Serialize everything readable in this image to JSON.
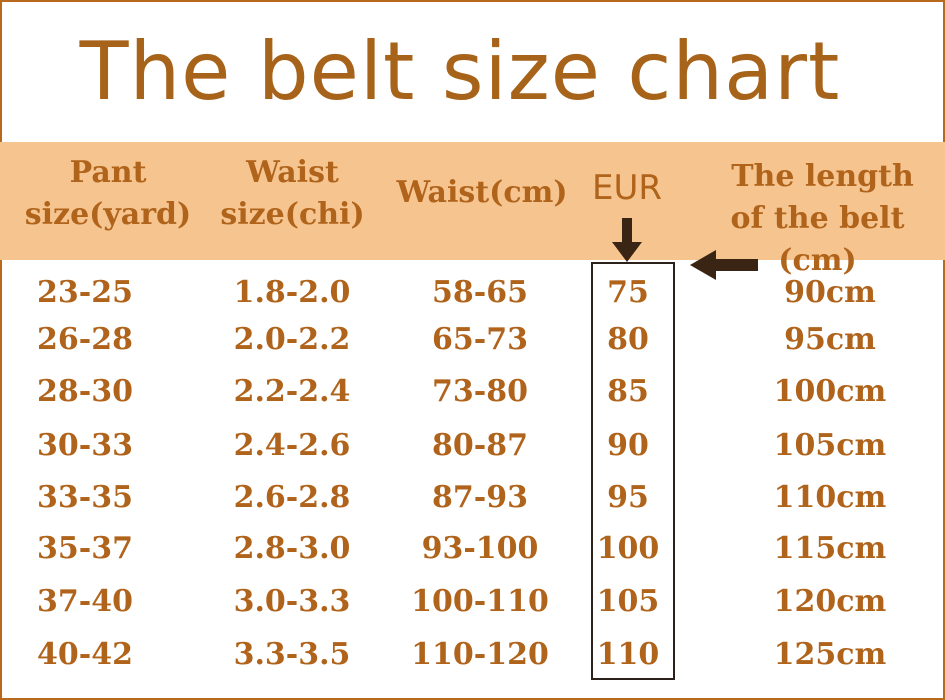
{
  "title": "The belt size chart",
  "header": {
    "pant_size": [
      "Pant",
      "size(yard)"
    ],
    "waist_chi": [
      "Waist",
      "size(chi)"
    ],
    "waist_cm": "Waist(cm)",
    "eur": "EUR",
    "belt_length": [
      "The length",
      "of the belt (cm)"
    ]
  },
  "rows": [
    {
      "pant": "23-25",
      "chi": "1.8-2.0",
      "cm": "58-65",
      "eur": "75",
      "length": "90cm"
    },
    {
      "pant": "26-28",
      "chi": "2.0-2.2",
      "cm": "65-73",
      "eur": "80",
      "length": "95cm"
    },
    {
      "pant": "28-30",
      "chi": "2.2-2.4",
      "cm": "73-80",
      "eur": "85",
      "length": "100cm"
    },
    {
      "pant": "30-33",
      "chi": "2.4-2.6",
      "cm": "80-87",
      "eur": "90",
      "length": "105cm"
    },
    {
      "pant": "33-35",
      "chi": "2.6-2.8",
      "cm": "87-93",
      "eur": "95",
      "length": "110cm"
    },
    {
      "pant": "35-37",
      "chi": "2.8-3.0",
      "cm": "93-100",
      "eur": "100",
      "length": "115cm"
    },
    {
      "pant": "37-40",
      "chi": "3.0-3.3",
      "cm": "100-110",
      "eur": "105",
      "length": "120cm"
    },
    {
      "pant": "40-42",
      "chi": "3.3-3.5",
      "cm": "110-120",
      "eur": "110",
      "length": "125cm"
    }
  ],
  "colors": {
    "text": "#b0631b",
    "header_band": "#f6c48e",
    "border": "#b8691c",
    "arrows": "#3a2414"
  }
}
